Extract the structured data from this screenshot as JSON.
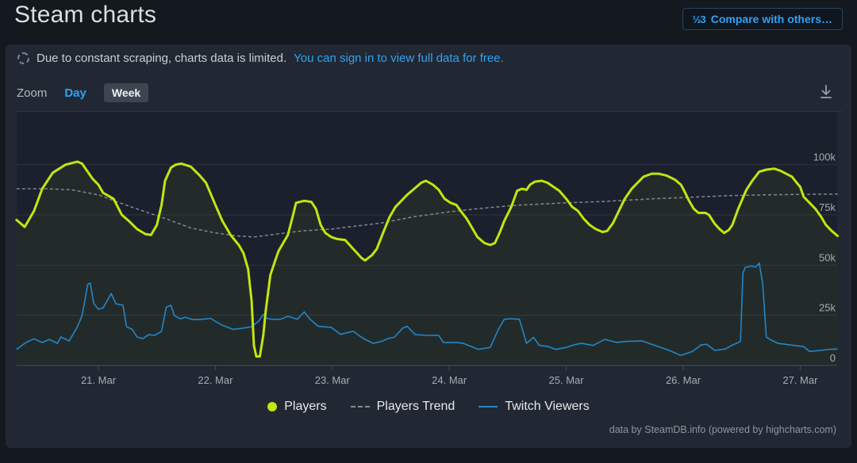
{
  "page": {
    "title": "Steam charts"
  },
  "header": {
    "compare_button": {
      "icon": "½3",
      "label": "Compare with others…"
    }
  },
  "notice": {
    "text": "Due to constant scraping, charts data is limited.",
    "link": "You can sign in to view full data for free."
  },
  "toolbar": {
    "zoom_label": "Zoom",
    "options": [
      {
        "label": "Day",
        "active": false
      },
      {
        "label": "Week",
        "active": true
      }
    ]
  },
  "legend": [
    {
      "label": "Players",
      "marker": "dot",
      "color": "#c3e510"
    },
    {
      "label": "Players Trend",
      "marker": "dash",
      "color": "#878c92"
    },
    {
      "label": "Twitch Viewers",
      "marker": "line",
      "color": "#2286c9"
    }
  ],
  "credits": "data by SteamDB.info (powered by highcharts.com)",
  "colors": {
    "link_accent": "#2ea2f4",
    "players": "#c3e510",
    "players_trend": "#878c92",
    "twitch_viewers": "#2286c9"
  },
  "chart_data": {
    "type": "line",
    "title": "Steam charts",
    "x_unit": "date, fractional days of March (21.0 = 21. Mar 00:00)",
    "xlim": [
      20.3,
      27.32
    ],
    "ylim": [
      0,
      105000
    ],
    "grid": true,
    "legend_position": "bottom-center",
    "x_ticks": [
      {
        "value": 21,
        "label": "21. Mar"
      },
      {
        "value": 22,
        "label": "22. Mar"
      },
      {
        "value": 23,
        "label": "23. Mar"
      },
      {
        "value": 24,
        "label": "24. Mar"
      },
      {
        "value": 25,
        "label": "25. Mar"
      },
      {
        "value": 26,
        "label": "26. Mar"
      },
      {
        "value": 27,
        "label": "27. Mar"
      }
    ],
    "y_ticks": [
      {
        "value": 0,
        "label": "0"
      },
      {
        "value": 25000,
        "label": "25k"
      },
      {
        "value": 50000,
        "label": "50k"
      },
      {
        "value": 75000,
        "label": "75k"
      },
      {
        "value": 100000,
        "label": "100k"
      }
    ],
    "series": [
      {
        "name": "Players",
        "color": "#c3e510",
        "style": "solid",
        "width": 3,
        "points": [
          [
            20.3,
            72500
          ],
          [
            20.37,
            69000
          ],
          [
            20.45,
            77000
          ],
          [
            20.52,
            88000
          ],
          [
            20.61,
            96000
          ],
          [
            20.72,
            100000
          ],
          [
            20.82,
            101500
          ],
          [
            20.86,
            100500
          ],
          [
            20.95,
            93000
          ],
          [
            21.0,
            90000
          ],
          [
            21.04,
            86000
          ],
          [
            21.13,
            83000
          ],
          [
            21.2,
            75000
          ],
          [
            21.26,
            72000
          ],
          [
            21.33,
            68000
          ],
          [
            21.4,
            65500
          ],
          [
            21.45,
            65000
          ],
          [
            21.5,
            70000
          ],
          [
            21.54,
            80000
          ],
          [
            21.57,
            92000
          ],
          [
            21.62,
            98500
          ],
          [
            21.66,
            100000
          ],
          [
            21.71,
            100500
          ],
          [
            21.79,
            99000
          ],
          [
            21.86,
            95000
          ],
          [
            21.92,
            91000
          ],
          [
            22.0,
            80000
          ],
          [
            22.06,
            72000
          ],
          [
            22.13,
            65000
          ],
          [
            22.2,
            60000
          ],
          [
            22.24,
            56000
          ],
          [
            22.28,
            48000
          ],
          [
            22.31,
            32000
          ],
          [
            22.33,
            10000
          ],
          [
            22.35,
            4500
          ],
          [
            22.38,
            4500
          ],
          [
            22.41,
            15000
          ],
          [
            22.43,
            27000
          ],
          [
            22.47,
            45000
          ],
          [
            22.51,
            52000
          ],
          [
            22.54,
            57000
          ],
          [
            22.58,
            61000
          ],
          [
            22.62,
            65000
          ],
          [
            22.66,
            74000
          ],
          [
            22.69,
            81000
          ],
          [
            22.76,
            82000
          ],
          [
            22.82,
            81500
          ],
          [
            22.86,
            78000
          ],
          [
            22.9,
            70000
          ],
          [
            22.94,
            66000
          ],
          [
            22.99,
            64000
          ],
          [
            23.04,
            63000
          ],
          [
            23.11,
            62500
          ],
          [
            23.18,
            58000
          ],
          [
            23.25,
            53500
          ],
          [
            23.28,
            52300
          ],
          [
            23.34,
            55000
          ],
          [
            23.38,
            58000
          ],
          [
            23.44,
            67000
          ],
          [
            23.49,
            74000
          ],
          [
            23.54,
            79000
          ],
          [
            23.59,
            82000
          ],
          [
            23.64,
            85000
          ],
          [
            23.7,
            88000
          ],
          [
            23.76,
            91000
          ],
          [
            23.8,
            92000
          ],
          [
            23.86,
            90000
          ],
          [
            23.91,
            87500
          ],
          [
            23.96,
            83000
          ],
          [
            24.01,
            81000
          ],
          [
            24.06,
            80000
          ],
          [
            24.11,
            76000
          ],
          [
            24.15,
            73000
          ],
          [
            24.2,
            68000
          ],
          [
            24.24,
            64000
          ],
          [
            24.3,
            61000
          ],
          [
            24.35,
            60000
          ],
          [
            24.39,
            61000
          ],
          [
            24.43,
            66000
          ],
          [
            24.47,
            72000
          ],
          [
            24.53,
            79000
          ],
          [
            24.58,
            87000
          ],
          [
            24.62,
            88000
          ],
          [
            24.66,
            87500
          ],
          [
            24.69,
            90000
          ],
          [
            24.73,
            91500
          ],
          [
            24.79,
            92000
          ],
          [
            24.84,
            91000
          ],
          [
            24.89,
            89000
          ],
          [
            24.94,
            87000
          ],
          [
            25.0,
            83000
          ],
          [
            25.05,
            79000
          ],
          [
            25.1,
            77000
          ],
          [
            25.15,
            73000
          ],
          [
            25.2,
            70000
          ],
          [
            25.25,
            68000
          ],
          [
            25.31,
            66500
          ],
          [
            25.35,
            67000
          ],
          [
            25.4,
            71000
          ],
          [
            25.45,
            77000
          ],
          [
            25.5,
            83000
          ],
          [
            25.56,
            88000
          ],
          [
            25.61,
            91000
          ],
          [
            25.66,
            94000
          ],
          [
            25.73,
            95500
          ],
          [
            25.79,
            95500
          ],
          [
            25.86,
            94500
          ],
          [
            25.93,
            92500
          ],
          [
            25.98,
            90000
          ],
          [
            26.0,
            88000
          ],
          [
            26.05,
            82000
          ],
          [
            26.09,
            78000
          ],
          [
            26.13,
            76000
          ],
          [
            26.19,
            76000
          ],
          [
            26.22,
            75000
          ],
          [
            26.27,
            70500
          ],
          [
            26.31,
            68000
          ],
          [
            26.35,
            66000
          ],
          [
            26.39,
            67500
          ],
          [
            26.42,
            70000
          ],
          [
            26.47,
            78000
          ],
          [
            26.54,
            87500
          ],
          [
            26.59,
            92000
          ],
          [
            26.65,
            96500
          ],
          [
            26.71,
            97500
          ],
          [
            26.78,
            98000
          ],
          [
            26.83,
            97000
          ],
          [
            26.88,
            95500
          ],
          [
            26.93,
            94000
          ],
          [
            26.97,
            91000
          ],
          [
            27.0,
            89000
          ],
          [
            27.03,
            84000
          ],
          [
            27.08,
            81000
          ],
          [
            27.13,
            78000
          ],
          [
            27.18,
            74000
          ],
          [
            27.22,
            70000
          ],
          [
            27.27,
            67000
          ],
          [
            27.32,
            64500
          ]
        ]
      },
      {
        "name": "Players Trend",
        "color": "#878c92",
        "style": "dashed",
        "width": 1.5,
        "points": [
          [
            20.3,
            88000
          ],
          [
            20.57,
            88000
          ],
          [
            20.77,
            87500
          ],
          [
            21.0,
            85000
          ],
          [
            21.18,
            81000
          ],
          [
            21.38,
            77000
          ],
          [
            21.58,
            73000
          ],
          [
            21.79,
            68500
          ],
          [
            22.0,
            66000
          ],
          [
            22.19,
            64500
          ],
          [
            22.33,
            64000
          ],
          [
            22.53,
            65500
          ],
          [
            22.74,
            67000
          ],
          [
            23.0,
            68000
          ],
          [
            23.21,
            69500
          ],
          [
            23.42,
            71000
          ],
          [
            23.69,
            74000
          ],
          [
            24.0,
            76500
          ],
          [
            24.23,
            78000
          ],
          [
            24.57,
            79800
          ],
          [
            25.0,
            81000
          ],
          [
            25.32,
            81700
          ],
          [
            25.73,
            83000
          ],
          [
            26.0,
            83600
          ],
          [
            26.4,
            84600
          ],
          [
            26.74,
            85000
          ],
          [
            27.0,
            85200
          ],
          [
            27.32,
            85400
          ]
        ]
      },
      {
        "name": "Twitch Viewers",
        "color": "#2286c9",
        "style": "solid",
        "width": 1.6,
        "points": [
          [
            20.3,
            8000
          ],
          [
            20.38,
            11400
          ],
          [
            20.45,
            13300
          ],
          [
            20.52,
            11400
          ],
          [
            20.58,
            13000
          ],
          [
            20.65,
            11000
          ],
          [
            20.68,
            14200
          ],
          [
            20.75,
            12200
          ],
          [
            20.82,
            19300
          ],
          [
            20.86,
            24800
          ],
          [
            20.91,
            40500
          ],
          [
            20.93,
            41000
          ],
          [
            20.96,
            31000
          ],
          [
            21.0,
            28000
          ],
          [
            21.04,
            28700
          ],
          [
            21.11,
            35800
          ],
          [
            21.15,
            30700
          ],
          [
            21.21,
            30000
          ],
          [
            21.24,
            19300
          ],
          [
            21.29,
            18000
          ],
          [
            21.33,
            14200
          ],
          [
            21.38,
            13400
          ],
          [
            21.43,
            15300
          ],
          [
            21.48,
            15000
          ],
          [
            21.54,
            17000
          ],
          [
            21.58,
            29000
          ],
          [
            21.62,
            30000
          ],
          [
            21.65,
            24800
          ],
          [
            21.7,
            23200
          ],
          [
            21.74,
            24000
          ],
          [
            21.81,
            22800
          ],
          [
            21.89,
            23000
          ],
          [
            21.96,
            23500
          ],
          [
            22.0,
            22000
          ],
          [
            22.06,
            20000
          ],
          [
            22.15,
            18000
          ],
          [
            22.23,
            18500
          ],
          [
            22.31,
            19300
          ],
          [
            22.37,
            22000
          ],
          [
            22.41,
            25500
          ],
          [
            22.44,
            23500
          ],
          [
            22.48,
            23000
          ],
          [
            22.56,
            23000
          ],
          [
            22.62,
            24500
          ],
          [
            22.65,
            24000
          ],
          [
            22.7,
            23000
          ],
          [
            22.76,
            26700
          ],
          [
            22.81,
            23000
          ],
          [
            22.88,
            19500
          ],
          [
            22.99,
            19000
          ],
          [
            23.07,
            15500
          ],
          [
            23.14,
            16500
          ],
          [
            23.18,
            17000
          ],
          [
            23.25,
            14000
          ],
          [
            23.28,
            13000
          ],
          [
            23.35,
            11000
          ],
          [
            23.42,
            12000
          ],
          [
            23.48,
            13500
          ],
          [
            23.53,
            14000
          ],
          [
            23.6,
            18500
          ],
          [
            23.64,
            19500
          ],
          [
            23.71,
            15300
          ],
          [
            23.82,
            15000
          ],
          [
            23.91,
            15000
          ],
          [
            23.95,
            11400
          ],
          [
            24.07,
            11400
          ],
          [
            24.12,
            11000
          ],
          [
            24.25,
            8000
          ],
          [
            24.35,
            9000
          ],
          [
            24.42,
            18000
          ],
          [
            24.47,
            23000
          ],
          [
            24.53,
            23300
          ],
          [
            24.6,
            23000
          ],
          [
            24.66,
            11000
          ],
          [
            24.72,
            14000
          ],
          [
            24.77,
            10000
          ],
          [
            24.84,
            9500
          ],
          [
            24.91,
            8000
          ],
          [
            25.0,
            9000
          ],
          [
            25.08,
            10500
          ],
          [
            25.13,
            11000
          ],
          [
            25.23,
            10000
          ],
          [
            25.33,
            13000
          ],
          [
            25.43,
            11500
          ],
          [
            25.52,
            12000
          ],
          [
            25.65,
            12200
          ],
          [
            25.79,
            9400
          ],
          [
            25.88,
            7500
          ],
          [
            25.98,
            5000
          ],
          [
            26.08,
            7000
          ],
          [
            26.15,
            10200
          ],
          [
            26.2,
            10600
          ],
          [
            26.27,
            7500
          ],
          [
            26.36,
            8200
          ],
          [
            26.42,
            10200
          ],
          [
            26.47,
            11400
          ],
          [
            26.49,
            12000
          ],
          [
            26.51,
            46000
          ],
          [
            26.53,
            48800
          ],
          [
            26.58,
            49500
          ],
          [
            26.62,
            49000
          ],
          [
            26.65,
            51000
          ],
          [
            26.68,
            40500
          ],
          [
            26.71,
            14200
          ],
          [
            26.74,
            13000
          ],
          [
            26.81,
            11000
          ],
          [
            26.92,
            10200
          ],
          [
            27.03,
            9400
          ],
          [
            27.08,
            7000
          ],
          [
            27.17,
            7500
          ],
          [
            27.25,
            8000
          ],
          [
            27.32,
            8200
          ]
        ]
      }
    ]
  }
}
